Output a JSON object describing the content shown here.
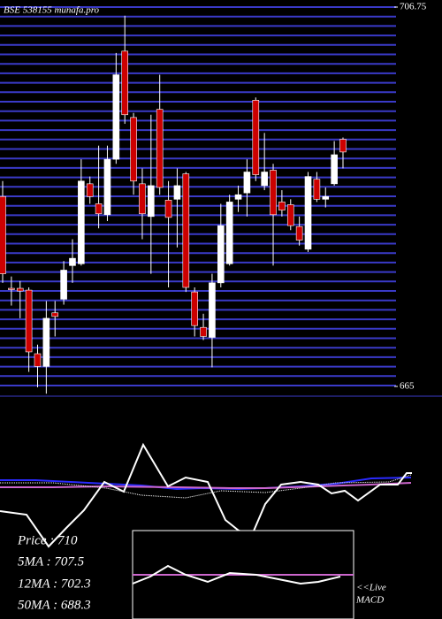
{
  "chart_data": {
    "type": "candlestick",
    "title": "BSE 538155 munafa.pro",
    "ylim": [
      665,
      706.75
    ],
    "yticks": [
      665,
      706.75
    ],
    "up_color": "#ffffff",
    "down_color": "#cc0000",
    "grid_color": "#3a3ac8",
    "candles": [
      [
        685.9,
        687.6,
        676.4,
        677.4
      ],
      [
        675.8,
        677.1,
        673.9,
        675.7
      ],
      [
        675.8,
        676.6,
        672.5,
        675.5
      ],
      [
        675.6,
        675.9,
        666.6,
        668.8
      ],
      [
        668.6,
        669.6,
        664.9,
        667.2
      ],
      [
        667.2,
        674.4,
        664.2,
        672.5
      ],
      [
        673.1,
        674.4,
        670.5,
        672.7
      ],
      [
        674.6,
        678.8,
        674.0,
        677.8
      ],
      [
        678.3,
        681.2,
        676.4,
        679.1
      ],
      [
        678.5,
        690.0,
        678.3,
        687.6
      ],
      [
        687.3,
        688.1,
        685.1,
        685.9
      ],
      [
        685.1,
        691.5,
        682.4,
        684.0
      ],
      [
        683.9,
        691.5,
        683.2,
        690.0
      ],
      [
        690.0,
        701.7,
        689.5,
        699.3
      ],
      [
        701.9,
        705.8,
        693.9,
        694.9
      ],
      [
        694.6,
        695.1,
        686.1,
        687.6
      ],
      [
        687.3,
        689.0,
        681.2,
        684.0
      ],
      [
        683.7,
        694.9,
        677.4,
        687.1
      ],
      [
        695.5,
        699.3,
        686.1,
        686.9
      ],
      [
        685.5,
        687.6,
        675.9,
        683.6
      ],
      [
        685.6,
        689.0,
        680.3,
        687.1
      ],
      [
        688.4,
        688.6,
        675.4,
        675.9
      ],
      [
        675.4,
        675.9,
        670.5,
        671.7
      ],
      [
        671.5,
        673.0,
        670.1,
        670.5
      ],
      [
        670.4,
        677.4,
        667.1,
        676.4
      ],
      [
        676.4,
        685.1,
        675.9,
        682.7
      ],
      [
        678.5,
        686.1,
        678.3,
        685.3
      ],
      [
        685.6,
        687.1,
        684.2,
        686.1
      ],
      [
        686.3,
        690.0,
        683.7,
        688.6
      ],
      [
        696.5,
        696.8,
        687.6,
        688.3
      ],
      [
        687.1,
        692.9,
        686.6,
        688.6
      ],
      [
        688.8,
        689.5,
        678.3,
        683.9
      ],
      [
        685.3,
        686.6,
        683.7,
        684.4
      ],
      [
        685.0,
        685.6,
        682.2,
        682.7
      ],
      [
        682.6,
        683.7,
        680.5,
        681.1
      ],
      [
        680.1,
        688.6,
        679.8,
        688.1
      ],
      [
        687.8,
        688.6,
        685.3,
        685.6
      ],
      [
        685.6,
        686.9,
        684.7,
        685.9
      ],
      [
        687.3,
        692.0,
        687.1,
        690.5
      ],
      [
        692.2,
        692.4,
        689.0,
        690.8
      ]
    ],
    "info": [
      "Price   : 710",
      "5MA : 707.5",
      "12MA : 702.3",
      "50MA : 688.3"
    ],
    "macd_label": [
      "<<Live",
      "MACD"
    ]
  }
}
